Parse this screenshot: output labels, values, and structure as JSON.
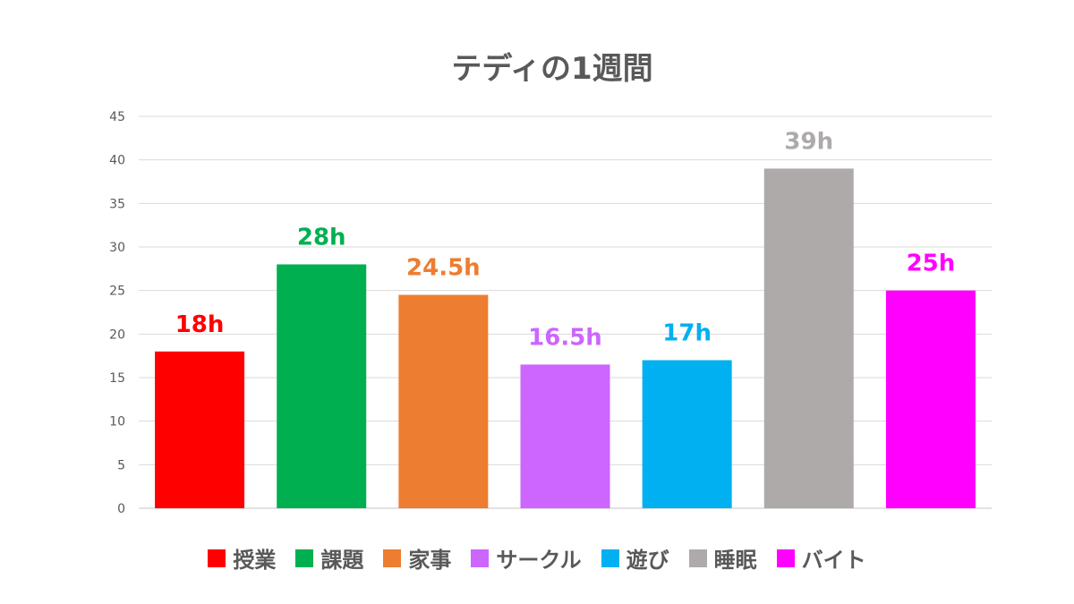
{
  "chart_data": {
    "type": "bar",
    "title": "テディの1週間",
    "categories": [
      "授業",
      "課題",
      "家事",
      "サークル",
      "遊び",
      "睡眠",
      "バイト"
    ],
    "values": [
      18,
      28,
      24.5,
      16.5,
      17,
      39,
      25
    ],
    "data_labels": [
      "18h",
      "28h",
      "24.5h",
      "16.5h",
      "17h",
      "39h",
      "25h"
    ],
    "colors": [
      "#FF0000",
      "#00B050",
      "#ED7D31",
      "#CC66FF",
      "#00B0F0",
      "#AEAAAA",
      "#FF00FF"
    ],
    "ylim": [
      0,
      45
    ],
    "yticks": [
      "0",
      "5",
      "10",
      "15",
      "20",
      "25",
      "30",
      "35",
      "40",
      "45"
    ],
    "grid": true,
    "legend": "bottom",
    "xlabel": "",
    "ylabel": ""
  }
}
